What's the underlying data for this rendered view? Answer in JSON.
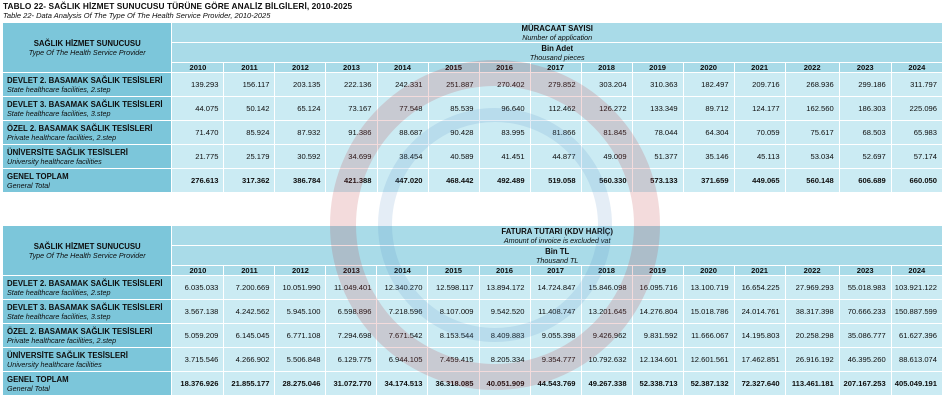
{
  "title": "TABLO 22- SAĞLIK HİZMET SUNUCUSU TÜRÜNE GÖRE ANALİZ BİLGİLERİ, 2010-2025",
  "subtitle": "Table 22- Data Analysis Of The Type Of The Health Service Provider, 2010-2025",
  "provider_header": "SAĞLIK HİZMET SUNUCUSU",
  "provider_header_en": "Type Of The Health Service Provider",
  "years": [
    "2010",
    "2011",
    "2012",
    "2013",
    "2014",
    "2015",
    "2016",
    "2017",
    "2018",
    "2019",
    "2020",
    "2021",
    "2022",
    "2023",
    "2024"
  ],
  "table1": {
    "measure": "MÜRACAAT SAYISI",
    "measure_en": "Number of application",
    "unit": "Bin Adet",
    "unit_en": "Thousand pieces",
    "rows": [
      {
        "label": "DEVLET 2. BASAMAK SAĞLIK TESİSLERİ",
        "label_en": "State healthcare facilities, 2.step",
        "values": [
          "139.293",
          "156.117",
          "203.135",
          "222.136",
          "242.331",
          "251.887",
          "270.402",
          "279.852",
          "303.204",
          "310.363",
          "182.497",
          "209.716",
          "268.936",
          "299.186",
          "311.797"
        ]
      },
      {
        "label": "DEVLET 3. BASAMAK SAĞLIK TESİSLERİ",
        "label_en": "State healthcare facilities, 3.step",
        "values": [
          "44.075",
          "50.142",
          "65.124",
          "73.167",
          "77.548",
          "85.539",
          "96.640",
          "112.462",
          "126.272",
          "133.349",
          "89.712",
          "124.177",
          "162.560",
          "186.303",
          "225.096"
        ]
      },
      {
        "label": "ÖZEL 2. BASAMAK SAĞLIK TESİSLERİ",
        "label_en": "Private healthcare facilities, 2.step",
        "values": [
          "71.470",
          "85.924",
          "87.932",
          "91.386",
          "88.687",
          "90.428",
          "83.995",
          "81.866",
          "81.845",
          "78.044",
          "64.304",
          "70.059",
          "75.617",
          "68.503",
          "65.983"
        ]
      },
      {
        "label": "ÜNİVERSİTE SAĞLIK TESİSLERİ",
        "label_en": "University healthcare facilities",
        "values": [
          "21.775",
          "25.179",
          "30.592",
          "34.699",
          "38.454",
          "40.589",
          "41.451",
          "44.877",
          "49.009",
          "51.377",
          "35.146",
          "45.113",
          "53.034",
          "52.697",
          "57.174"
        ]
      },
      {
        "label": "GENEL TOPLAM",
        "label_en": "General Total",
        "values": [
          "276.613",
          "317.362",
          "386.784",
          "421.388",
          "447.020",
          "468.442",
          "492.489",
          "519.058",
          "560.330",
          "573.133",
          "371.659",
          "449.065",
          "560.148",
          "606.689",
          "660.050"
        ]
      }
    ]
  },
  "table2": {
    "measure": "FATURA TUTARI (KDV HARİÇ)",
    "measure_en": "Amount of invoice is excluded vat",
    "unit": "Bin TL",
    "unit_en": "Thousand TL",
    "rows": [
      {
        "label": "DEVLET 2. BASAMAK SAĞLIK TESİSLERİ",
        "label_en": "State healthcare facilities, 2.step",
        "values": [
          "6.035.033",
          "7.200.669",
          "10.051.990",
          "11.049.401",
          "12.340.270",
          "12.598.117",
          "13.894.172",
          "14.724.847",
          "15.846.098",
          "16.095.716",
          "13.100.719",
          "16.654.225",
          "27.969.293",
          "55.018.983",
          "103.921.122"
        ]
      },
      {
        "label": "DEVLET 3. BASAMAK SAĞLIK TESİSLERİ",
        "label_en": "State healthcare facilities, 3.step",
        "values": [
          "3.567.138",
          "4.242.562",
          "5.945.100",
          "6.598.896",
          "7.218.596",
          "8.107.009",
          "9.542.520",
          "11.408.747",
          "13.201.645",
          "14.276.804",
          "15.018.786",
          "24.014.761",
          "38.317.398",
          "70.666.233",
          "150.887.599"
        ]
      },
      {
        "label": "ÖZEL 2. BASAMAK SAĞLIK TESİSLERİ",
        "label_en": "Private healthcare facilities, 2.step",
        "values": [
          "5.059.209",
          "6.145.045",
          "6.771.108",
          "7.294.698",
          "7.671.542",
          "8.153.544",
          "8.409.883",
          "9.055.398",
          "9.426.962",
          "9.831.592",
          "11.666.067",
          "14.195.803",
          "20.258.298",
          "35.086.777",
          "61.627.396"
        ]
      },
      {
        "label": "ÜNİVERSİTE SAĞLIK TESİSLERİ",
        "label_en": "University healthcare facilities",
        "values": [
          "3.715.546",
          "4.266.902",
          "5.506.848",
          "6.129.775",
          "6.944.105",
          "7.459.415",
          "8.205.334",
          "9.354.777",
          "10.792.632",
          "12.134.601",
          "12.601.561",
          "17.462.851",
          "26.916.192",
          "46.395.260",
          "88.613.074"
        ]
      },
      {
        "label": "GENEL TOPLAM",
        "label_en": "General Total",
        "values": [
          "18.376.926",
          "21.855.177",
          "28.275.046",
          "31.072.770",
          "34.174.513",
          "36.318.085",
          "40.051.909",
          "44.543.769",
          "49.267.338",
          "52.338.713",
          "52.387.132",
          "72.327.640",
          "113.461.181",
          "207.167.253",
          "405.049.191"
        ]
      }
    ]
  }
}
